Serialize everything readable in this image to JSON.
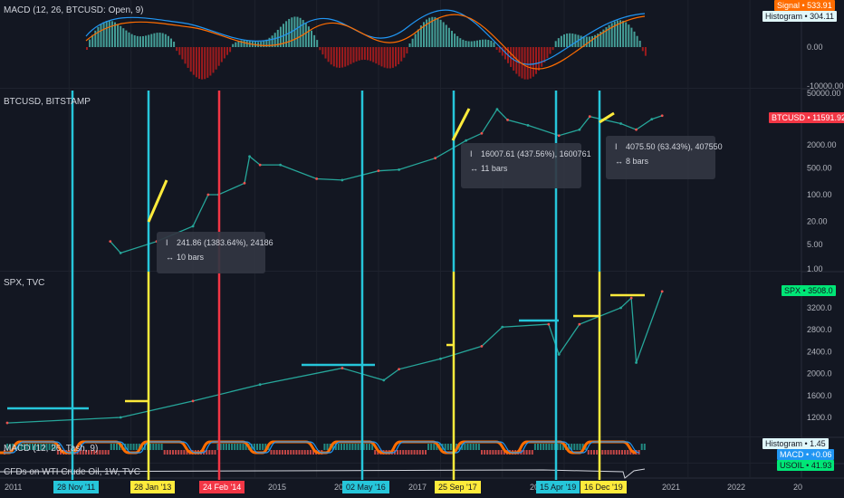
{
  "panes": {
    "macd_top": {
      "title": "MACD (12, 26, BTCUSD: Open, 9)"
    },
    "btc": {
      "title": "BTCUSD, BITSTAMP"
    },
    "spx": {
      "title": "SPX, TVC"
    },
    "macd_bottom": {
      "title": "MACD (12, 26, Tash, 9)"
    },
    "oil": {
      "title": "CFDs on WTI Crude Oil, 1W, TVC"
    }
  },
  "price_tags": {
    "signal": "Signal • 533.91",
    "histogram_top": "Histogram • 304.11",
    "btcusd": "BTCUSD • 11591.92",
    "spx": "SPX • 3508.0",
    "histogram_bottom": "Histogram • 1.45",
    "macd": "MACD • +0.06",
    "usoil": "USOIL • 41.93"
  },
  "measurements": [
    {
      "value": "241.86 (1383.64%), 24186",
      "bars": "10 bars"
    },
    {
      "value": "16007.61 (437.56%), 1600761",
      "bars": "11 bars"
    },
    {
      "value": "4075.50 (63.43%), 407550",
      "bars": "8 bars"
    }
  ],
  "date_tags": [
    {
      "label": "28 Nov '11",
      "color": "#26c6da"
    },
    {
      "label": "28 Jan '13",
      "color": "#ffeb3b"
    },
    {
      "label": "24 Feb '14",
      "color": "#f23645"
    },
    {
      "label": "02 May '16",
      "color": "#26c6da"
    },
    {
      "label": "25 Sep '17",
      "color": "#ffeb3b"
    },
    {
      "label": "15 Apr '19",
      "color": "#26c6da"
    },
    {
      "label": "16 Dec '19",
      "color": "#ffeb3b"
    }
  ],
  "year_labels": [
    "2011",
    "2015",
    "20",
    "2017",
    "20",
    "2021",
    "2022",
    "20"
  ],
  "colors": {
    "cyan": "#26c6da",
    "yellow": "#ffeb3b",
    "red": "#f23645",
    "teal": "#26a69a",
    "orange": "#ff6d00",
    "blue": "#2196f3"
  },
  "chart_data": [
    {
      "type": "bar",
      "title": "MACD (12, 26, BTCUSD: Open, 9)",
      "y_ticks": [
        "0.00",
        "-10000.00"
      ],
      "signal_last": 533.91,
      "histogram_last": 304.11
    },
    {
      "type": "line",
      "title": "BTCUSD, BITSTAMP",
      "scale": "log",
      "y_ticks": [
        "50000.00",
        "2000.00",
        "500.00",
        "100.00",
        "20.00",
        "5.00",
        "1.00"
      ],
      "last": 11591.92,
      "x": [
        "2011-09",
        "2011-11",
        "2012-06",
        "2013-01",
        "2013-04",
        "2013-06",
        "2013-11",
        "2013-12",
        "2014-02",
        "2014-06",
        "2015-01",
        "2015-06",
        "2016-01",
        "2016-05",
        "2016-12",
        "2017-06",
        "2017-09",
        "2017-12",
        "2018-02",
        "2018-06",
        "2018-12",
        "2019-04",
        "2019-06",
        "2019-12",
        "2020-03",
        "2020-06",
        "2020-08"
      ],
      "y": [
        6,
        3,
        6,
        15,
        100,
        100,
        200,
        1000,
        600,
        600,
        260,
        240,
        420,
        450,
        900,
        2600,
        4000,
        17000,
        9000,
        6500,
        3500,
        5000,
        11000,
        7200,
        5000,
        9400,
        11600
      ]
    },
    {
      "type": "line",
      "title": "SPX, TVC",
      "y_ticks": [
        "3200.0",
        "2800.0",
        "2400.0",
        "2000.0",
        "1600.0",
        "1200.0"
      ],
      "last": 3508.0,
      "x": [
        "2010-01",
        "2011-11",
        "2013-01",
        "2014-02",
        "2015-06",
        "2016-02",
        "2016-05",
        "2017-01",
        "2017-09",
        "2018-01",
        "2018-10",
        "2018-12",
        "2019-04",
        "2019-12",
        "2020-02",
        "2020-03",
        "2020-08"
      ],
      "y": [
        1100,
        1200,
        1500,
        1800,
        2100,
        1880,
        2080,
        2270,
        2500,
        2850,
        2900,
        2350,
        2900,
        3200,
        3380,
        2200,
        3500
      ]
    },
    {
      "type": "bar",
      "title": "MACD (12, 26, Tash, 9)",
      "histogram_last": 1.45,
      "macd_last": 0.06
    },
    {
      "type": "line",
      "title": "CFDs on WTI Crude Oil, 1W, TVC",
      "last": 41.93
    }
  ]
}
